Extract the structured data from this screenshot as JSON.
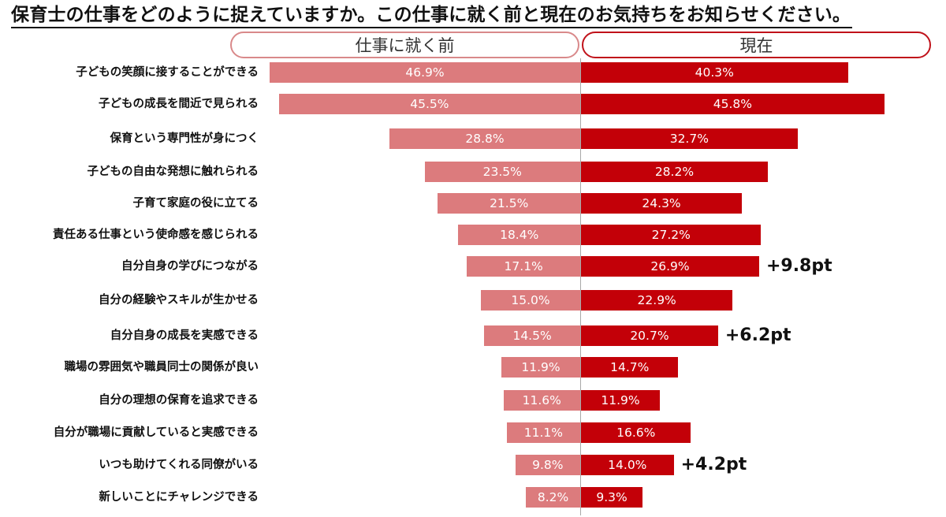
{
  "title": "保育士の仕事をどのように捉えていますか。この仕事に就く前と現在のお気持ちをお知らせください。",
  "legend": {
    "before": "仕事に就く前",
    "now": "現在"
  },
  "colors": {
    "before": "#dc7b7d",
    "now": "#c30008",
    "axis": "#a8a8a8"
  },
  "chart_data": {
    "type": "bar",
    "orientation": "horizontal-diverging",
    "title": "保育士の仕事をどのように捉えていますか。この仕事に就く前と現在のお気持ちをお知らせください。",
    "xlabel": "",
    "ylabel": "",
    "unit": "%",
    "grid": false,
    "legend_position": "top",
    "categories": [
      "子どもの笑顔に接することができる",
      "子どもの成長を間近で見られる",
      "保育という専門性が身につく",
      "子どもの自由な発想に触れられる",
      "子育て家庭の役に立てる",
      "責任ある仕事という使命感を感じられる",
      "自分自身の学びにつながる",
      "自分の経験やスキルが生かせる",
      "自分自身の成長を実感できる",
      "職場の雰囲気や職員同士の関係が良い",
      "自分の理想の保育を追求できる",
      "自分が職場に貢献していると実感できる",
      "いつも助けてくれる同僚がいる",
      "新しいことにチャレンジできる"
    ],
    "series": [
      {
        "name": "仕事に就く前",
        "values": [
          46.9,
          45.5,
          28.8,
          23.5,
          21.5,
          18.4,
          17.1,
          15.0,
          14.5,
          11.9,
          11.6,
          11.1,
          9.8,
          8.2
        ]
      },
      {
        "name": "現在",
        "values": [
          40.3,
          45.8,
          32.7,
          28.2,
          24.3,
          27.2,
          26.9,
          22.9,
          20.7,
          14.7,
          11.9,
          16.6,
          14.0,
          9.3
        ]
      }
    ],
    "annotations": [
      {
        "category": "自分自身の学びにつながる",
        "text": "+9.8pt"
      },
      {
        "category": "自分自身の成長を実感できる",
        "text": "+6.2pt"
      },
      {
        "category": "いつも助けてくれる同僚がいる",
        "text": "+4.2pt"
      }
    ]
  },
  "rows": [
    {
      "label": "子どもの笑顔に接することができる",
      "before": "46.9%",
      "now": "40.3%",
      "delta": ""
    },
    {
      "label": "子どもの成長を間近で見られる",
      "before": "45.5%",
      "now": "45.8%",
      "delta": ""
    },
    {
      "label": "保育という専門性が身につく",
      "before": "28.8%",
      "now": "32.7%",
      "delta": ""
    },
    {
      "label": "子どもの自由な発想に触れられる",
      "before": "23.5%",
      "now": "28.2%",
      "delta": ""
    },
    {
      "label": "子育て家庭の役に立てる",
      "before": "21.5%",
      "now": "24.3%",
      "delta": ""
    },
    {
      "label": "責任ある仕事という使命感を感じられる",
      "before": "18.4%",
      "now": "27.2%",
      "delta": ""
    },
    {
      "label": "自分自身の学びにつながる",
      "before": "17.1%",
      "now": "26.9%",
      "delta": "+9.8pt"
    },
    {
      "label": "自分の経験やスキルが生かせる",
      "before": "15.0%",
      "now": "22.9%",
      "delta": ""
    },
    {
      "label": "自分自身の成長を実感できる",
      "before": "14.5%",
      "now": "20.7%",
      "delta": "+6.2pt"
    },
    {
      "label": "職場の雰囲気や職員同士の関係が良い",
      "before": "11.9%",
      "now": "14.7%",
      "delta": ""
    },
    {
      "label": "自分の理想の保育を追求できる",
      "before": "11.6%",
      "now": "11.9%",
      "delta": ""
    },
    {
      "label": "自分が職場に貢献していると実感できる",
      "before": "11.1%",
      "now": "16.6%",
      "delta": ""
    },
    {
      "label": "いつも助けてくれる同僚がいる",
      "before": "9.8%",
      "now": "14.0%",
      "delta": "+4.2pt"
    },
    {
      "label": "新しいことにチャレンジできる",
      "before": "8.2%",
      "now": "9.3%",
      "delta": ""
    }
  ]
}
